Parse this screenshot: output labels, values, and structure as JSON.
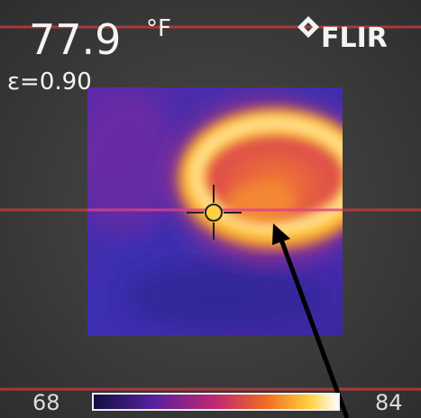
{
  "readout": {
    "temperature": 77.9,
    "unit": "°F",
    "emissivity": "ε=0.90"
  },
  "brand": "FLIR",
  "scale": {
    "min": 68,
    "max": 84
  }
}
